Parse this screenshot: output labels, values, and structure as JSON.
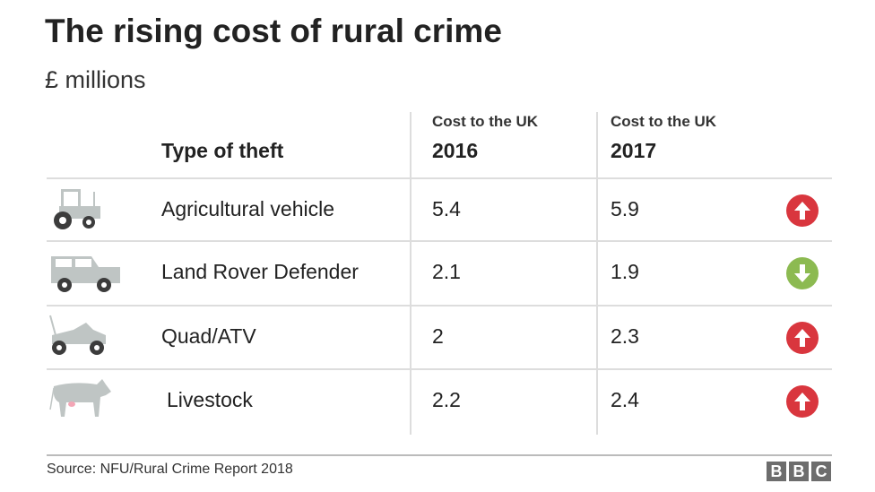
{
  "title": "The rising cost of rural crime",
  "subtitle": "£ millions",
  "chart_data": {
    "type": "table",
    "columns": [
      {
        "label": "Type of theft"
      },
      {
        "label_top": "Cost to the UK",
        "label": "2016"
      },
      {
        "label_top": "Cost to the UK",
        "label": "2017"
      }
    ],
    "rows": [
      {
        "icon": "tractor-icon",
        "type": "Agricultural vehicle",
        "v2016": "5.4",
        "v2017": "5.9",
        "trend": "up"
      },
      {
        "icon": "land-rover-icon",
        "type": "Land Rover Defender",
        "v2016": "2.1",
        "v2017": "1.9",
        "trend": "down"
      },
      {
        "icon": "quad-bike-icon",
        "type": "Quad/ATV",
        "v2016": "2",
        "v2017": "2.3",
        "trend": "up"
      },
      {
        "icon": "cow-icon",
        "type": "Livestock",
        "v2016": "2.2",
        "v2017": "2.4",
        "trend": "up"
      }
    ]
  },
  "colors": {
    "up": "#d9363e",
    "down": "#8cba51",
    "icon": "#bfc5c4",
    "wheel": "#3c3c3c"
  },
  "source": "Source: NFU/Rural Crime Report 2018",
  "logo": "BBC"
}
